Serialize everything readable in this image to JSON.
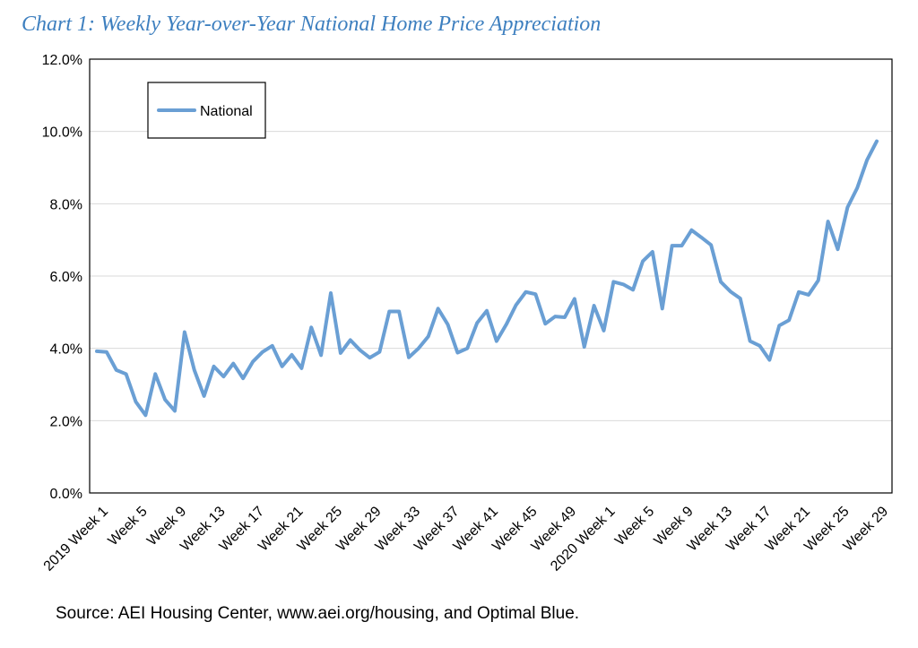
{
  "title": "Chart 1: Weekly Year-over-Year National Home Price Appreciation",
  "source": "Source: AEI Housing Center, www.aei.org/housing, and Optimal Blue.",
  "colors": {
    "title": "#3d7fbf",
    "series": "#6a9fd4",
    "axis": "#000000",
    "grid": "#d9d9d9"
  },
  "chart_data": {
    "type": "line",
    "title": "Chart 1: Weekly Year-over-Year National Home Price Appreciation",
    "xlabel": "",
    "ylabel": "",
    "ylim": [
      0,
      12
    ],
    "y_ticks": [
      "0.0%",
      "2.0%",
      "4.0%",
      "6.0%",
      "8.0%",
      "10.0%",
      "12.0%"
    ],
    "y_tick_values": [
      0,
      2,
      4,
      6,
      8,
      10,
      12
    ],
    "grid": "horizontal",
    "legend_position": "top-left",
    "x_tick_labels": [
      {
        "index": 0,
        "label": "2019 Week 1"
      },
      {
        "index": 4,
        "label": "Week 5"
      },
      {
        "index": 8,
        "label": "Week 9"
      },
      {
        "index": 12,
        "label": "Week 13"
      },
      {
        "index": 16,
        "label": "Week 17"
      },
      {
        "index": 20,
        "label": "Week 21"
      },
      {
        "index": 24,
        "label": "Week 25"
      },
      {
        "index": 28,
        "label": "Week 29"
      },
      {
        "index": 32,
        "label": "Week 33"
      },
      {
        "index": 36,
        "label": "Week 37"
      },
      {
        "index": 40,
        "label": "Week 41"
      },
      {
        "index": 44,
        "label": "Week 45"
      },
      {
        "index": 48,
        "label": "Week 49"
      },
      {
        "index": 52,
        "label": "2020 Week 1"
      },
      {
        "index": 56,
        "label": "Week 5"
      },
      {
        "index": 60,
        "label": "Week 9"
      },
      {
        "index": 64,
        "label": "Week 13"
      },
      {
        "index": 68,
        "label": "Week 17"
      },
      {
        "index": 72,
        "label": "Week 21"
      },
      {
        "index": 76,
        "label": "Week 25"
      },
      {
        "index": 80,
        "label": "Week 29"
      }
    ],
    "series": [
      {
        "name": "National",
        "values": [
          3.92,
          3.9,
          3.4,
          3.29,
          2.52,
          2.15,
          3.29,
          2.58,
          2.27,
          4.45,
          3.4,
          2.68,
          3.5,
          3.22,
          3.58,
          3.17,
          3.63,
          3.9,
          4.07,
          3.5,
          3.82,
          3.45,
          4.58,
          3.81,
          5.53,
          3.87,
          4.23,
          3.95,
          3.74,
          3.9,
          5.02,
          5.02,
          3.75,
          4.0,
          4.33,
          5.1,
          4.66,
          3.88,
          4.0,
          4.7,
          5.04,
          4.2,
          4.66,
          5.2,
          5.56,
          5.5,
          4.68,
          4.88,
          4.86,
          5.37,
          4.04,
          5.18,
          4.49,
          5.84,
          5.77,
          5.62,
          6.41,
          6.67,
          5.1,
          6.84,
          6.84,
          7.27,
          7.07,
          6.86,
          5.84,
          5.57,
          5.38,
          4.2,
          4.07,
          3.68,
          4.63,
          4.78,
          5.56,
          5.48,
          5.88,
          7.51,
          6.74,
          7.9,
          8.44,
          9.21,
          9.73
        ]
      }
    ]
  }
}
